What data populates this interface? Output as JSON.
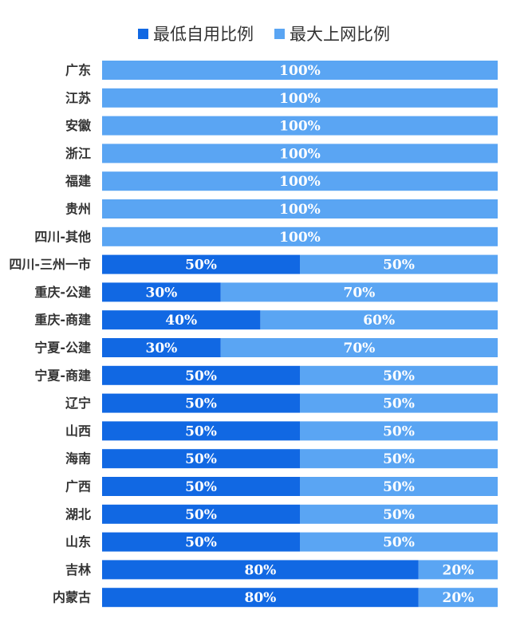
{
  "colors": {
    "self_use": "#1168e3",
    "grid": "#5aa5f3",
    "label_text": "#333333",
    "value_text": "#ffffff"
  },
  "chart_data": {
    "type": "bar",
    "orientation": "horizontal",
    "stacked": true,
    "legend": "top",
    "xlim": [
      0,
      100
    ],
    "grid": false,
    "categories": [
      "广东",
      "江苏",
      "安徽",
      "浙江",
      "福建",
      "贵州",
      "四川-其他",
      "四川-三州一市",
      "重庆-公建",
      "重庆-商建",
      "宁夏-公建",
      "宁夏-商建",
      "辽宁",
      "山西",
      "海南",
      "广西",
      "湖北",
      "山东",
      "吉林",
      "内蒙古"
    ],
    "series": [
      {
        "name": "最低自用比例",
        "values": [
          0,
          0,
          0,
          0,
          0,
          0,
          0,
          50,
          30,
          40,
          30,
          50,
          50,
          50,
          50,
          50,
          50,
          50,
          80,
          80
        ]
      },
      {
        "name": "最大上网比例",
        "values": [
          100,
          100,
          100,
          100,
          100,
          100,
          100,
          50,
          70,
          60,
          70,
          50,
          50,
          50,
          50,
          50,
          50,
          50,
          20,
          20
        ]
      }
    ]
  }
}
